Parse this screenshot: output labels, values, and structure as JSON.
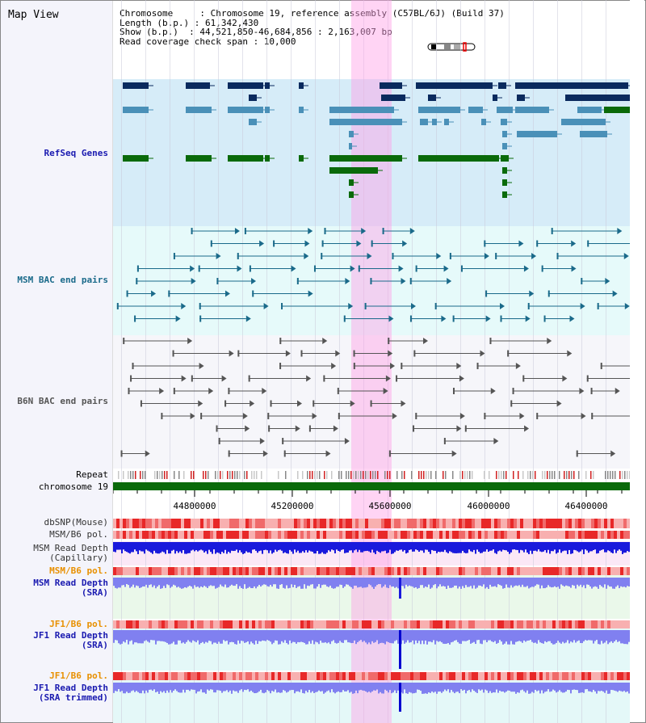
{
  "title": "Map View",
  "info": {
    "line1": "Chromosome     : Chromosome 19, reference assembly (C57BL/6J) (Build 37)",
    "line2": "Length (b.p.) : 61,342,430",
    "line3": "Show (b.p.)  : 44,521,850-46,684,856 : 2,163,007 bp",
    "line4": "Read coverage check span : 10,000"
  },
  "labels": {
    "refseq": "RefSeq Genes",
    "msm_bac": "MSM BAC end pairs",
    "b6n_bac": "B6N BAC end pairs",
    "repeat": "Repeat",
    "chromosome": "chromosome 19",
    "dbsnp": "dbSNP(Mouse)",
    "msm_pol": "MSM/B6 pol.",
    "msm_depth_cap_1": "MSM Read Depth",
    "msm_depth_cap_2": "(Capillary)",
    "msm_pol_2": "MSM/B6 pol.",
    "msm_depth_sra_1": "MSM Read Depth",
    "msm_depth_sra_2": "(SRA)",
    "jf1_pol": "JF1/B6 pol.",
    "jf1_depth_1": "JF1 Read Depth",
    "jf1_depth_2": "(SRA)",
    "jf1_pol_2": "JF1/B6 pol.",
    "jf1_trim_1": "JF1 Read Depth",
    "jf1_trim_2": "(SRA trimmed)"
  },
  "ticks": [
    "44800000",
    "45200000",
    "45600000",
    "46000000",
    "46400000"
  ],
  "colors": {
    "refseq_dark": "#0a2a5e",
    "refseq_mid": "#4a90b8",
    "refseq_green": "#0a6a0a",
    "bac_msm": "#1a6a8a",
    "bac_b6n": "#555555",
    "chromosome_bar": "#0a6a0a",
    "depth_blue": "#1a1adc",
    "depth_light": "#8080f0",
    "pol_red": "#e83030"
  }
}
